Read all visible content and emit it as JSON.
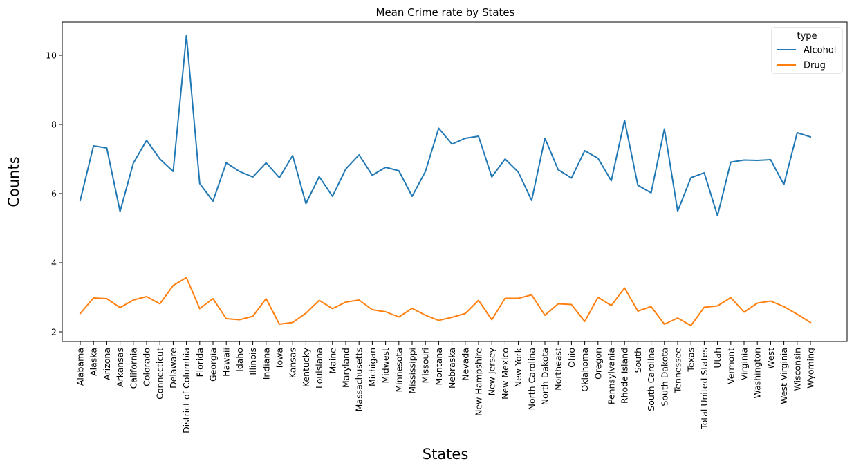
{
  "chart_data": {
    "type": "line",
    "title": "Mean Crime rate by States",
    "xlabel": "States",
    "ylabel": "Counts",
    "ylim": [
      1.72,
      10.96
    ],
    "yticks": [
      2,
      4,
      6,
      8,
      10
    ],
    "grid": false,
    "legend_title": "type",
    "legend_position": "top-right",
    "categories": [
      "Alabama",
      "Alaska",
      "Arizona",
      "Arkansas",
      "California",
      "Colorado",
      "Connecticut",
      "Delaware",
      "District of Columbia",
      "Florida",
      "Georgia",
      "Hawaii",
      "Idaho",
      "Illinois",
      "Indiana",
      "Iowa",
      "Kansas",
      "Kentucky",
      "Louisiana",
      "Maine",
      "Maryland",
      "Massachusetts",
      "Michigan",
      "Midwest",
      "Minnesota",
      "Mississippi",
      "Missouri",
      "Montana",
      "Nebraska",
      "Nevada",
      "New Hampshire",
      "New Jersey",
      "New Mexico",
      "New York",
      "North Carolina",
      "North Dakota",
      "Northeast",
      "Ohio",
      "Oklahoma",
      "Oregon",
      "Pennsylvania",
      "Rhode Island",
      "South",
      "South Carolina",
      "South Dakota",
      "Tennessee",
      "Texas",
      "Total United States",
      "Utah",
      "Vermont",
      "Virginia",
      "Washington",
      "West",
      "West Virginia",
      "Wisconsin",
      "Wyoming"
    ],
    "series": [
      {
        "name": "Alcohol",
        "color": "#1f77b4",
        "values": [
          5.8,
          7.38,
          7.32,
          5.48,
          6.88,
          7.54,
          7.0,
          6.64,
          10.58,
          6.29,
          5.78,
          6.89,
          6.64,
          6.48,
          6.89,
          6.46,
          7.1,
          5.71,
          6.49,
          5.92,
          6.71,
          7.12,
          6.53,
          6.76,
          6.66,
          5.92,
          6.64,
          7.89,
          7.43,
          7.6,
          7.66,
          6.48,
          7.0,
          6.62,
          5.8,
          7.6,
          6.69,
          6.45,
          7.24,
          7.02,
          6.37,
          8.12,
          6.24,
          6.02,
          7.87,
          5.49,
          6.46,
          6.6,
          5.36,
          6.91,
          6.97,
          6.96,
          6.98,
          6.26,
          7.76,
          7.64
        ]
      },
      {
        "name": "Drug",
        "color": "#ff7f0e",
        "values": [
          2.53,
          2.98,
          2.96,
          2.7,
          2.92,
          3.02,
          2.81,
          3.34,
          3.57,
          2.67,
          2.96,
          2.38,
          2.35,
          2.45,
          2.96,
          2.22,
          2.27,
          2.54,
          2.91,
          2.67,
          2.86,
          2.92,
          2.64,
          2.58,
          2.43,
          2.68,
          2.48,
          2.33,
          2.42,
          2.53,
          2.91,
          2.35,
          2.97,
          2.97,
          3.07,
          2.48,
          2.81,
          2.79,
          2.3,
          3.0,
          2.76,
          3.27,
          2.6,
          2.73,
          2.22,
          2.4,
          2.18,
          2.71,
          2.75,
          2.99,
          2.57,
          2.83,
          2.89,
          2.73,
          2.51,
          2.27
        ]
      }
    ]
  }
}
